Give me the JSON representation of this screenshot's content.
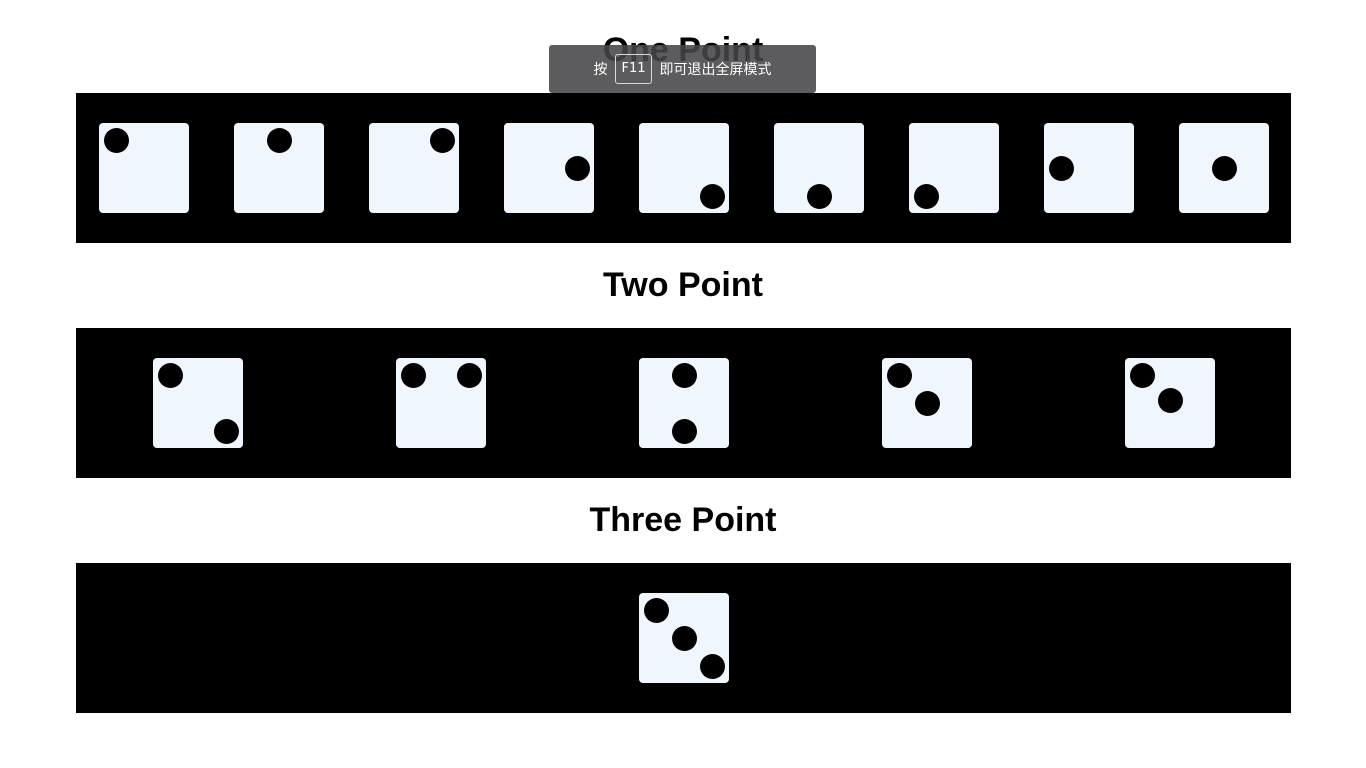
{
  "sections": [
    {
      "title": "One Point"
    },
    {
      "title": "Two Point"
    },
    {
      "title": "Three Point"
    }
  ],
  "dice": {
    "one_point": [
      {
        "pips": 1,
        "placement": "top-left"
      },
      {
        "pips": 1,
        "placement": "top-center"
      },
      {
        "pips": 1,
        "placement": "top-right"
      },
      {
        "pips": 1,
        "placement": "middle-right"
      },
      {
        "pips": 1,
        "placement": "bottom-right"
      },
      {
        "pips": 1,
        "placement": "bottom-center"
      },
      {
        "pips": 1,
        "placement": "bottom-left"
      },
      {
        "pips": 1,
        "placement": "middle-left"
      },
      {
        "pips": 1,
        "placement": "center-right"
      }
    ],
    "two_point": [
      {
        "pips": 2,
        "placement": "top-left + bottom-right"
      },
      {
        "pips": 2,
        "placement": "top-left + top-right"
      },
      {
        "pips": 2,
        "placement": "top-center + bottom-center"
      },
      {
        "pips": 2,
        "placement": "top-left + center"
      },
      {
        "pips": 2,
        "placement": "top-left + center"
      }
    ],
    "three_point": [
      {
        "pips": 3,
        "placement": "diagonal"
      }
    ]
  },
  "fullscreen_hint": {
    "prefix": "按",
    "key": "F11",
    "suffix": "即可退出全屏模式"
  },
  "colors": {
    "background": "#ffffff",
    "row_background": "#000000",
    "die_face": "#eff6fe",
    "pip": "#000000"
  }
}
